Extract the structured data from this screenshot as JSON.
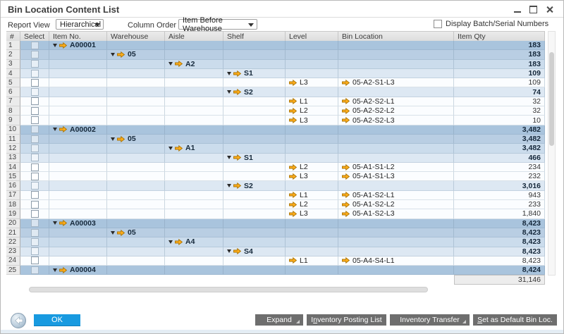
{
  "window": {
    "title": "Bin Location Content List"
  },
  "controls": {
    "report_view_label": "Report View",
    "report_view_value": "Hierarchical",
    "column_order_label": "Column Order",
    "column_order_value": "Item Before Warehouse",
    "batch_serial_label": "Display Batch/Serial Numbers",
    "batch_serial_checked": false
  },
  "table": {
    "columns": [
      "#",
      "Select",
      "Item No.",
      "Warehouse",
      "Aisle",
      "Shelf",
      "Level",
      "Bin Location",
      "Item Qty"
    ],
    "rows": [
      {
        "num": 1,
        "group": "item",
        "item": "A00001",
        "qty": "183"
      },
      {
        "num": 2,
        "group": "warehouse",
        "wh": "05",
        "qty": "183"
      },
      {
        "num": 3,
        "group": "aisle",
        "aisle": "A2",
        "qty": "183"
      },
      {
        "num": 4,
        "group": "shelf",
        "shelf": "S1",
        "qty": "109"
      },
      {
        "num": 5,
        "group": "leaf",
        "level": "L3",
        "bin": "05-A2-S1-L3",
        "qty": "109"
      },
      {
        "num": 6,
        "group": "shelf",
        "shelf": "S2",
        "qty": "74"
      },
      {
        "num": 7,
        "group": "leaf",
        "level": "L1",
        "bin": "05-A2-S2-L1",
        "qty": "32"
      },
      {
        "num": 8,
        "group": "leaf",
        "level": "L2",
        "bin": "05-A2-S2-L2",
        "qty": "32"
      },
      {
        "num": 9,
        "group": "leaf",
        "level": "L3",
        "bin": "05-A2-S2-L3",
        "qty": "10"
      },
      {
        "num": 10,
        "group": "item",
        "item": "A00002",
        "qty": "3,482"
      },
      {
        "num": 11,
        "group": "warehouse",
        "wh": "05",
        "qty": "3,482"
      },
      {
        "num": 12,
        "group": "aisle",
        "aisle": "A1",
        "qty": "3,482"
      },
      {
        "num": 13,
        "group": "shelf",
        "shelf": "S1",
        "qty": "466"
      },
      {
        "num": 14,
        "group": "leaf",
        "level": "L2",
        "bin": "05-A1-S1-L2",
        "qty": "234"
      },
      {
        "num": 15,
        "group": "leaf",
        "level": "L3",
        "bin": "05-A1-S1-L3",
        "qty": "232"
      },
      {
        "num": 16,
        "group": "shelf",
        "shelf": "S2",
        "qty": "3,016"
      },
      {
        "num": 17,
        "group": "leaf",
        "level": "L1",
        "bin": "05-A1-S2-L1",
        "qty": "943"
      },
      {
        "num": 18,
        "group": "leaf",
        "level": "L2",
        "bin": "05-A1-S2-L2",
        "qty": "233"
      },
      {
        "num": 19,
        "group": "leaf",
        "level": "L3",
        "bin": "05-A1-S2-L3",
        "qty": "1,840"
      },
      {
        "num": 20,
        "group": "item",
        "item": "A00003",
        "qty": "8,423"
      },
      {
        "num": 21,
        "group": "warehouse",
        "wh": "05",
        "qty": "8,423"
      },
      {
        "num": 22,
        "group": "aisle",
        "aisle": "A4",
        "qty": "8,423"
      },
      {
        "num": 23,
        "group": "shelf",
        "shelf": "S4",
        "qty": "8,423"
      },
      {
        "num": 24,
        "group": "leaf",
        "level": "L1",
        "bin": "05-A4-S4-L1",
        "qty": "8,423"
      },
      {
        "num": 25,
        "group": "item",
        "item": "A00004",
        "qty": "8,424"
      }
    ],
    "total_qty": "31,146"
  },
  "footer": {
    "ok_label": "OK",
    "buttons": [
      {
        "pre": "Expand",
        "accel": "",
        "post": "",
        "menu": true
      },
      {
        "pre": "I",
        "accel": "n",
        "post": "ventory Posting List",
        "menu": false
      },
      {
        "pre": "Inventory Transfer",
        "accel": "",
        "post": "",
        "menu": true
      },
      {
        "pre": "",
        "accel": "S",
        "post": "et as Default Bin Loc.",
        "menu": false
      }
    ]
  },
  "colors": {
    "accent_blue": "#189AE0",
    "link_arrow_orange": "#FFAE1C",
    "row_item": "#A9C4DD",
    "row_warehouse": "#B9CEE3",
    "row_aisle": "#CBDCEC",
    "row_shelf": "#DDE8F3",
    "footer_button_grey": "#6E6E6E"
  }
}
